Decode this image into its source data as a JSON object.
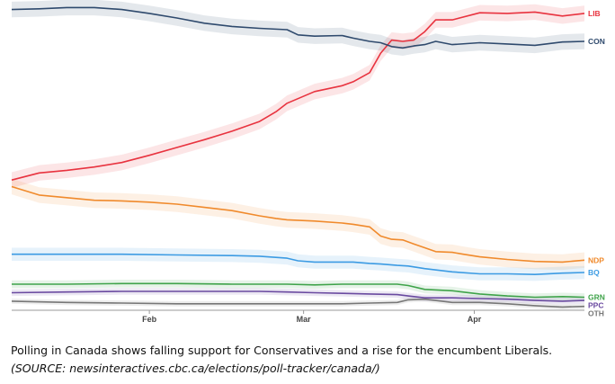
{
  "caption": {
    "text": "Polling in Canada shows falling support for Conservatives and a rise for the encumbent Liberals.",
    "source": "(SOURCE: newsinteractives.cbc.ca/elections/poll-tracker/canada/)"
  },
  "chart_data": {
    "type": "line",
    "title": "",
    "xlabel": "",
    "ylabel": "",
    "x_ticks": [
      "Feb",
      "Mar",
      "Apr"
    ],
    "x_tick_positions": [
      25,
      53,
      84
    ],
    "x_range": [
      0,
      104
    ],
    "y_range": [
      0,
      46
    ],
    "grid": false,
    "legend": "line-end labels",
    "series": [
      {
        "name": "LIB",
        "color": "#e8333f",
        "band": 1.2,
        "x": [
          0,
          5,
          10,
          15,
          20,
          25,
          30,
          35,
          40,
          45,
          48,
          50,
          55,
          60,
          62,
          65,
          67,
          69,
          71,
          73,
          75,
          77,
          80,
          85,
          90,
          95,
          100,
          104
        ],
        "y": [
          20,
          21.1,
          21.5,
          22,
          22.7,
          23.8,
          25,
          26.2,
          27.5,
          29,
          30.5,
          31.8,
          33.6,
          34.5,
          35.1,
          36.5,
          39.5,
          41.5,
          41.3,
          41.5,
          42.8,
          44.6,
          44.6,
          45.7,
          45.6,
          45.8,
          45.2,
          45.6
        ]
      },
      {
        "name": "CON",
        "color": "#2f4a6d",
        "band": 1.2,
        "x": [
          0,
          5,
          10,
          15,
          20,
          25,
          30,
          35,
          40,
          45,
          50,
          52,
          55,
          60,
          62,
          65,
          67,
          69,
          71,
          73,
          75,
          77,
          80,
          85,
          90,
          95,
          100,
          104
        ],
        "y": [
          46.2,
          46.3,
          46.5,
          46.5,
          46.2,
          45.6,
          44.9,
          44.1,
          43.6,
          43.3,
          43.1,
          42.3,
          42.1,
          42.2,
          41.8,
          41.3,
          41.1,
          40.5,
          40.3,
          40.6,
          40.8,
          41.3,
          40.8,
          41.1,
          40.9,
          40.7,
          41.2,
          41.3
        ]
      },
      {
        "name": "NDP",
        "color": "#f08a2c",
        "band": 1.2,
        "x": [
          0,
          5,
          10,
          15,
          20,
          25,
          30,
          35,
          40,
          45,
          48,
          50,
          55,
          60,
          62,
          65,
          67,
          69,
          71,
          73,
          75,
          77,
          80,
          82,
          85,
          90,
          95,
          100,
          104
        ],
        "y": [
          19,
          17.7,
          17.3,
          16.9,
          16.8,
          16.6,
          16.3,
          15.8,
          15.3,
          14.5,
          14.1,
          13.9,
          13.7,
          13.4,
          13.2,
          12.8,
          11.4,
          10.9,
          10.8,
          10.2,
          9.6,
          9,
          8.9,
          8.6,
          8.2,
          7.8,
          7.5,
          7.4,
          7.7
        ]
      },
      {
        "name": "BQ",
        "color": "#3c9be3",
        "band": 1.0,
        "x": [
          0,
          10,
          20,
          30,
          40,
          45,
          50,
          52,
          55,
          60,
          62,
          65,
          67,
          70,
          72,
          75,
          80,
          85,
          90,
          95,
          100,
          104
        ],
        "y": [
          8.6,
          8.6,
          8.6,
          8.5,
          8.4,
          8.3,
          8.0,
          7.6,
          7.4,
          7.4,
          7.4,
          7.2,
          7.1,
          6.9,
          6.8,
          6.4,
          5.9,
          5.6,
          5.6,
          5.5,
          5.7,
          5.8
        ]
      },
      {
        "name": "GRN",
        "color": "#3fa34a",
        "band": 0.6,
        "x": [
          0,
          10,
          20,
          30,
          40,
          50,
          55,
          60,
          65,
          70,
          72,
          75,
          80,
          85,
          90,
          95,
          100,
          104
        ],
        "y": [
          4.0,
          4.0,
          4.1,
          4.1,
          4.0,
          4.0,
          3.9,
          4.0,
          4.0,
          4.0,
          3.8,
          3.2,
          3.0,
          2.5,
          2.2,
          2.0,
          2.1,
          2.0
        ]
      },
      {
        "name": "PPC",
        "color": "#6a4aa0",
        "band": 0.5,
        "x": [
          0,
          10,
          20,
          30,
          40,
          45,
          50,
          55,
          60,
          65,
          70,
          72,
          75,
          80,
          85,
          90,
          95,
          100,
          104
        ],
        "y": [
          2.7,
          2.8,
          2.9,
          2.9,
          2.9,
          2.9,
          2.8,
          2.7,
          2.6,
          2.5,
          2.4,
          2.2,
          1.9,
          1.9,
          1.8,
          1.7,
          1.5,
          1.4,
          1.5
        ]
      },
      {
        "name": "OTH",
        "color": "#777777",
        "band": 0.4,
        "x": [
          0,
          10,
          20,
          30,
          40,
          50,
          60,
          65,
          70,
          72,
          75,
          80,
          85,
          90,
          95,
          100,
          104
        ],
        "y": [
          1.4,
          1.2,
          1.1,
          1.0,
          1.0,
          1.0,
          1.0,
          1.1,
          1.2,
          1.6,
          1.7,
          1.2,
          1.2,
          1.0,
          0.7,
          0.5,
          0.6
        ]
      }
    ]
  }
}
